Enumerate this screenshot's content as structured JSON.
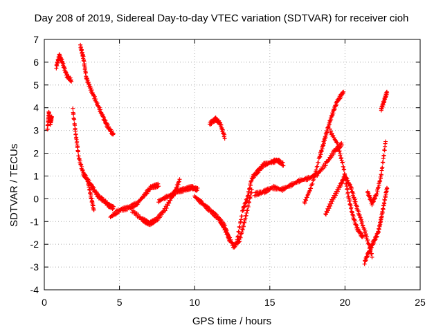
{
  "chart_data": {
    "type": "scatter",
    "title": "Day 208 of 2019, Sidereal Day-to-day VTEC variation (SDTVAR) for receiver cioh",
    "xlabel": "GPS time / hours",
    "ylabel": "SDTVAR / TECUs",
    "xlim": [
      0,
      25
    ],
    "ylim": [
      -4,
      7
    ],
    "xticks": [
      "0",
      "5",
      "10",
      "15",
      "20",
      "25"
    ],
    "yticks": [
      "-4",
      "-3",
      "-2",
      "-1",
      "0",
      "1",
      "2",
      "3",
      "4",
      "5",
      "6",
      "7"
    ],
    "grid": true,
    "marker": "+",
    "color": "#ff0000",
    "series": [
      {
        "name": "s1",
        "points": [
          [
            0.2,
            3.0
          ],
          [
            0.3,
            3.8
          ],
          [
            0.4,
            3.3
          ],
          [
            0.5,
            3.6
          ]
        ]
      },
      {
        "name": "s2",
        "points": [
          [
            0.8,
            5.8
          ],
          [
            1.0,
            6.3
          ],
          [
            1.2,
            6.0
          ],
          [
            1.5,
            5.4
          ],
          [
            1.8,
            5.2
          ]
        ]
      },
      {
        "name": "s3",
        "points": [
          [
            1.9,
            3.9
          ],
          [
            2.1,
            2.8
          ],
          [
            2.3,
            1.8
          ],
          [
            2.6,
            1.1
          ],
          [
            2.8,
            0.9
          ],
          [
            3.2,
            0.5
          ],
          [
            3.6,
            0.1
          ],
          [
            4.0,
            -0.1
          ],
          [
            4.3,
            -0.3
          ],
          [
            4.6,
            -0.4
          ]
        ]
      },
      {
        "name": "s4",
        "points": [
          [
            2.4,
            6.7
          ],
          [
            2.6,
            6.2
          ],
          [
            2.8,
            5.3
          ],
          [
            3.1,
            4.8
          ],
          [
            3.5,
            4.2
          ],
          [
            3.9,
            3.6
          ],
          [
            4.2,
            3.2
          ],
          [
            4.6,
            2.8
          ]
        ]
      },
      {
        "name": "s5",
        "points": [
          [
            2.9,
            0.8
          ],
          [
            3.1,
            0.1
          ],
          [
            3.3,
            -0.5
          ]
        ]
      },
      {
        "name": "s6",
        "points": [
          [
            4.4,
            -0.8
          ],
          [
            5.0,
            -0.5
          ],
          [
            5.6,
            -0.4
          ],
          [
            6.2,
            -0.2
          ],
          [
            6.7,
            0.2
          ],
          [
            7.1,
            0.5
          ],
          [
            7.6,
            0.6
          ]
        ]
      },
      {
        "name": "s7",
        "points": [
          [
            5.8,
            -0.5
          ],
          [
            6.5,
            -0.9
          ],
          [
            7.0,
            -1.1
          ],
          [
            7.5,
            -0.9
          ],
          [
            8.0,
            -0.5
          ],
          [
            8.6,
            0.2
          ],
          [
            9.0,
            0.8
          ]
        ]
      },
      {
        "name": "s8",
        "points": [
          [
            7.6,
            -0.1
          ],
          [
            8.2,
            0.1
          ],
          [
            8.8,
            0.3
          ],
          [
            9.3,
            0.4
          ],
          [
            9.8,
            0.5
          ],
          [
            10.2,
            0.4
          ]
        ]
      },
      {
        "name": "s9",
        "points": [
          [
            10.0,
            0.1
          ],
          [
            10.5,
            -0.2
          ],
          [
            11.0,
            -0.5
          ],
          [
            11.5,
            -0.8
          ],
          [
            12.0,
            -1.2
          ],
          [
            12.3,
            -1.8
          ]
        ]
      },
      {
        "name": "s10",
        "points": [
          [
            11.0,
            3.3
          ],
          [
            11.4,
            3.5
          ],
          [
            11.7,
            3.3
          ],
          [
            12.0,
            2.7
          ]
        ]
      },
      {
        "name": "s11",
        "points": [
          [
            11.7,
            -1.0
          ],
          [
            12.2,
            -1.6
          ],
          [
            12.6,
            -2.1
          ],
          [
            13.0,
            -1.8
          ],
          [
            13.4,
            -0.8
          ],
          [
            13.8,
            0.4
          ]
        ]
      },
      {
        "name": "s12",
        "points": [
          [
            12.8,
            -1.9
          ],
          [
            13.2,
            -0.5
          ],
          [
            13.5,
            0.0
          ],
          [
            13.8,
            0.9
          ],
          [
            14.2,
            1.2
          ],
          [
            14.6,
            1.5
          ],
          [
            15.1,
            1.6
          ],
          [
            15.5,
            1.7
          ],
          [
            15.9,
            1.5
          ]
        ]
      },
      {
        "name": "s13",
        "points": [
          [
            14.0,
            0.2
          ],
          [
            14.6,
            0.3
          ],
          [
            15.2,
            0.5
          ],
          [
            15.8,
            0.4
          ],
          [
            16.4,
            0.6
          ],
          [
            17.0,
            0.8
          ],
          [
            17.6,
            0.9
          ],
          [
            18.2,
            1.1
          ],
          [
            18.8,
            1.6
          ],
          [
            19.3,
            2.1
          ],
          [
            19.8,
            2.4
          ]
        ]
      },
      {
        "name": "s14",
        "points": [
          [
            17.3,
            -0.2
          ],
          [
            17.8,
            0.6
          ],
          [
            18.3,
            1.8
          ],
          [
            18.6,
            2.5
          ],
          [
            18.9,
            3.2
          ],
          [
            19.2,
            3.8
          ],
          [
            19.5,
            4.3
          ],
          [
            19.9,
            4.7
          ]
        ]
      },
      {
        "name": "s15",
        "points": [
          [
            18.7,
            -0.7
          ],
          [
            19.2,
            0.0
          ],
          [
            19.7,
            0.6
          ],
          [
            20.0,
            1.0
          ],
          [
            20.4,
            0.5
          ],
          [
            20.7,
            -0.2
          ],
          [
            21.0,
            -0.8
          ],
          [
            21.4,
            -1.6
          ],
          [
            21.8,
            -2.5
          ]
        ]
      },
      {
        "name": "s16",
        "points": [
          [
            19.0,
            3.0
          ],
          [
            19.5,
            2.4
          ],
          [
            19.9,
            1.4
          ],
          [
            20.2,
            0.2
          ],
          [
            20.5,
            -0.7
          ],
          [
            20.8,
            -1.3
          ],
          [
            21.2,
            -1.7
          ]
        ]
      },
      {
        "name": "s17",
        "points": [
          [
            21.3,
            -2.8
          ],
          [
            21.6,
            -2.3
          ],
          [
            21.9,
            -1.9
          ],
          [
            22.2,
            -1.5
          ],
          [
            22.4,
            -0.9
          ],
          [
            22.6,
            -0.2
          ],
          [
            22.8,
            0.5
          ]
        ]
      },
      {
        "name": "s18",
        "points": [
          [
            21.5,
            0.3
          ],
          [
            21.8,
            -0.2
          ],
          [
            22.1,
            0.2
          ],
          [
            22.4,
            1.0
          ],
          [
            22.7,
            2.5
          ]
        ]
      },
      {
        "name": "s19",
        "points": [
          [
            22.4,
            3.9
          ],
          [
            22.6,
            4.3
          ],
          [
            22.8,
            4.7
          ]
        ]
      }
    ]
  }
}
